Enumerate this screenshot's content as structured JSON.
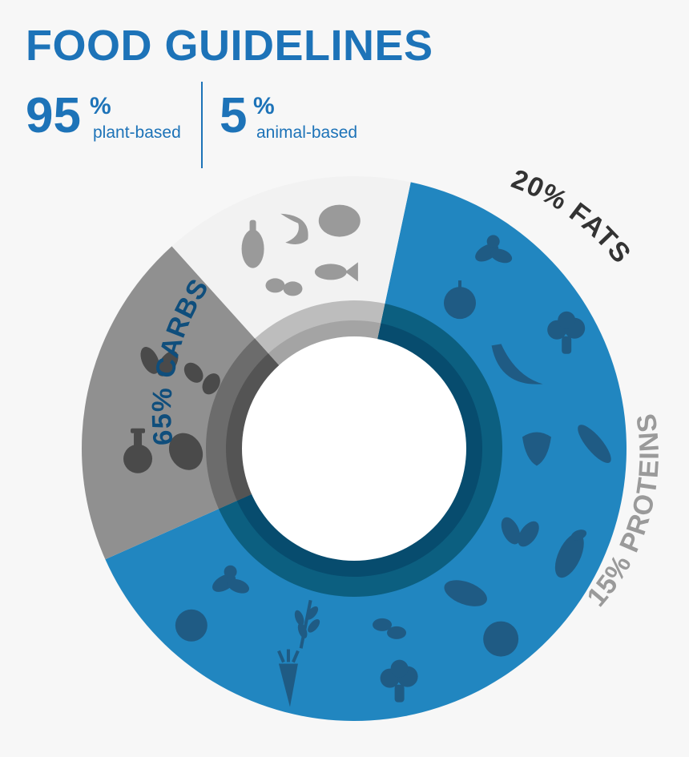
{
  "header": {
    "title": "FOOD GUIDELINES",
    "plant": {
      "value": "95",
      "unit": "%",
      "label": "plant-based"
    },
    "animal": {
      "value": "5",
      "unit": "%",
      "label": "animal-based"
    }
  },
  "chart_data": {
    "type": "pie",
    "segments": [
      {
        "label": "65% CARBS",
        "value": 65,
        "color": "#2186c0",
        "inner_color": "#0c5f80",
        "ring_color": "#074c6e"
      },
      {
        "label": "20% FATS",
        "value": 20,
        "color": "#909090",
        "inner_color": "#6c6c6c",
        "ring_color": "#545454"
      },
      {
        "label": "15% PROTEINS",
        "value": 15,
        "color": "#f2f2f2",
        "inner_color": "#bdbdbd",
        "ring_color": "#a4a4a4"
      }
    ],
    "label_colors": {
      "carbs": "#0f4e7c",
      "fats": "#333333",
      "proteins": "#9a9a9a"
    },
    "icon_colors": {
      "carbs": "#1f5b84",
      "fats": "#4a4a4a",
      "proteins": "#9a9a9a"
    },
    "icons": {
      "carbs": [
        "ginger-icon",
        "broccoli-icon",
        "pepper-icon",
        "corn-icon",
        "tomato-icon",
        "broccoli-icon",
        "carrot-icon",
        "lemon-icon",
        "apple-icon",
        "banana-icon",
        "strawberry-icon",
        "leaves-icon",
        "sweet-potato-icon",
        "beans-icon",
        "wheat-icon",
        "ginger-icon"
      ],
      "fats": [
        "oil-bottle-icon",
        "leaves-icon",
        "avocado-icon",
        "nuts-icon"
      ],
      "proteins": [
        "chicken-leg-icon",
        "shrimp-icon",
        "steak-icon",
        "eggs-icon",
        "fish-icon"
      ]
    }
  }
}
